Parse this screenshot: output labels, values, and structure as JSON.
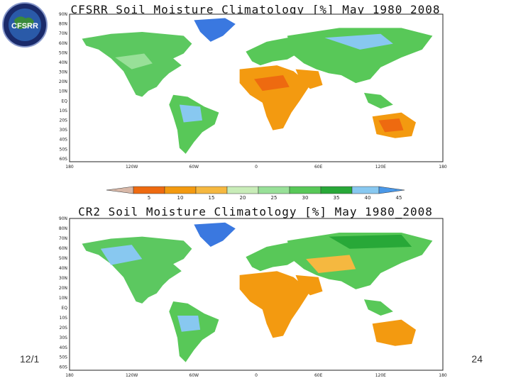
{
  "logo": {
    "text": "CFSRR",
    "icon": "globe-logo-icon"
  },
  "maps": [
    {
      "title": "CFSRR Soil Moisture Climatology [%] May 1980_2008",
      "lat_labels": [
        "90N",
        "80N",
        "70N",
        "60N",
        "50N",
        "40N",
        "30N",
        "20N",
        "10N",
        "EQ",
        "10S",
        "20S",
        "30S",
        "40S",
        "50S",
        "60S"
      ],
      "lon_labels": [
        "180",
        "120W",
        "60W",
        "0",
        "60E",
        "120E",
        "180"
      ]
    },
    {
      "title": "CR2 Soil Moisture Climatology [%] May 1980_2008",
      "lat_labels": [
        "90N",
        "80N",
        "70N",
        "60N",
        "50N",
        "40N",
        "30N",
        "20N",
        "10N",
        "EQ",
        "10S",
        "20S",
        "30S",
        "40S",
        "50S",
        "60S"
      ],
      "lon_labels": [
        "180",
        "120W",
        "60W",
        "0",
        "60E",
        "120E",
        "180"
      ]
    }
  ],
  "colorbar": {
    "labels": [
      "5",
      "10",
      "15",
      "20",
      "25",
      "30",
      "35",
      "40",
      "45"
    ],
    "colors": [
      "#d8b8a8",
      "#ee6a10",
      "#f39a10",
      "#f5b840",
      "#c8ecb8",
      "#98e098",
      "#58c858",
      "#28a838",
      "#88c8f0",
      "#4a98e8"
    ]
  },
  "footer": {
    "date": "12/1",
    "slide_number": "24"
  }
}
